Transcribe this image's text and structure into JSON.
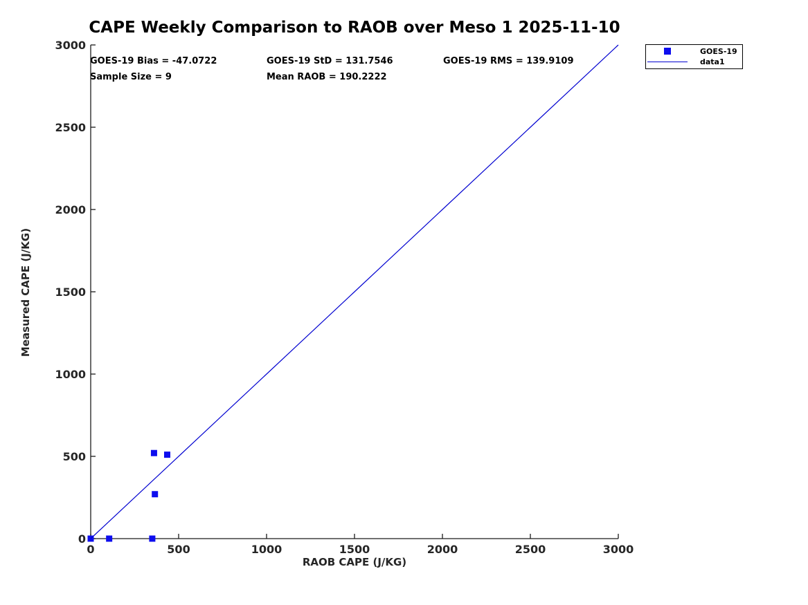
{
  "title": "CAPE Weekly Comparison to RAOB over Meso 1 2025-11-10",
  "stats": {
    "bias": "GOES-19 Bias = -47.0722",
    "std": "GOES-19 StD = 131.7546",
    "rms": "GOES-19 RMS = 139.9109",
    "sample_size": "Sample Size = 9",
    "mean_raob": "Mean RAOB = 190.2222"
  },
  "legend": {
    "entries": [
      {
        "label": "GOES-19",
        "swatch": "square"
      },
      {
        "label": "data1",
        "swatch": "line"
      }
    ]
  },
  "colors": {
    "marker": "#0d0dee",
    "line": "#0000d0",
    "axis": "#1a1a1a",
    "text": "#262626",
    "background": "#ffffff"
  },
  "chart_data": {
    "type": "scatter",
    "title": "CAPE Weekly Comparison to RAOB over Meso 1 2025-11-10",
    "xlabel": "RAOB CAPE (J/KG)",
    "ylabel": "Measured CAPE (J/KG)",
    "xlim": [
      0,
      3000
    ],
    "ylim": [
      0,
      3000
    ],
    "xticks": [
      0,
      500,
      1000,
      1500,
      2000,
      2500,
      3000
    ],
    "yticks": [
      0,
      500,
      1000,
      1500,
      2000,
      2500,
      3000
    ],
    "grid": false,
    "legend_position": "top-right",
    "series": [
      {
        "name": "GOES-19",
        "type": "scatter",
        "marker": "square",
        "color": "#0d0dee",
        "points": [
          [
            0,
            0
          ],
          [
            105,
            0
          ],
          [
            350,
            0
          ],
          [
            360,
            520
          ],
          [
            435,
            510
          ],
          [
            365,
            270
          ]
        ],
        "note": "sample size 9; overlapping markers at origin"
      },
      {
        "name": "data1",
        "type": "line",
        "color": "#0000d0",
        "points": [
          [
            0,
            0
          ],
          [
            3000,
            3000
          ]
        ]
      }
    ]
  }
}
